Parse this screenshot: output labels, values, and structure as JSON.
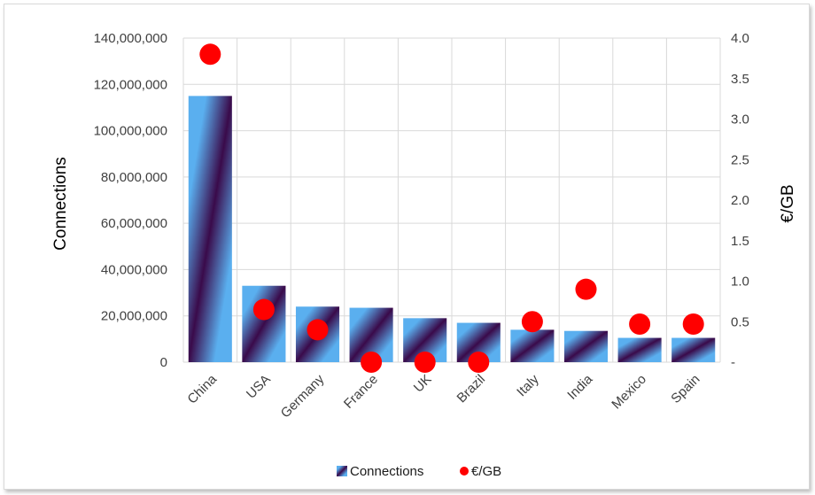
{
  "chart_data": {
    "type": "bar",
    "categories": [
      "China",
      "USA",
      "Germany",
      "France",
      "UK",
      "Brazil",
      "Italy",
      "India",
      "Mexico",
      "Spain"
    ],
    "series": [
      {
        "name": "Connections",
        "type": "bar",
        "axis": "left",
        "values": [
          115000000,
          33000000,
          24000000,
          23500000,
          19000000,
          17000000,
          14000000,
          13500000,
          10500000,
          10500000
        ]
      },
      {
        "name": "€/GB",
        "type": "scatter",
        "axis": "right",
        "color": "#ff0000",
        "values": [
          3.8,
          0.65,
          0.4,
          0.0,
          0.0,
          0.0,
          0.5,
          0.9,
          0.47,
          0.47
        ]
      }
    ],
    "ylabel": "Connections",
    "y2label": "€/GB",
    "ylim": [
      0,
      140000000
    ],
    "y2lim": [
      0,
      4.0
    ],
    "yticks": [
      "0",
      "20,000,000",
      "40,000,000",
      "60,000,000",
      "80,000,000",
      "100,000,000",
      "120,000,000",
      "140,000,000"
    ],
    "y2ticks": [
      "-",
      "0.5",
      "1.0",
      "1.5",
      "2.0",
      "2.5",
      "3.0",
      "3.5",
      "4.0"
    ],
    "grid": true,
    "legend_position": "bottom",
    "colors": {
      "bar_light": "#5aafef",
      "bar_dark": "#3a0a4a",
      "marker": "#ff0000",
      "grid": "#d9d9d9"
    }
  }
}
